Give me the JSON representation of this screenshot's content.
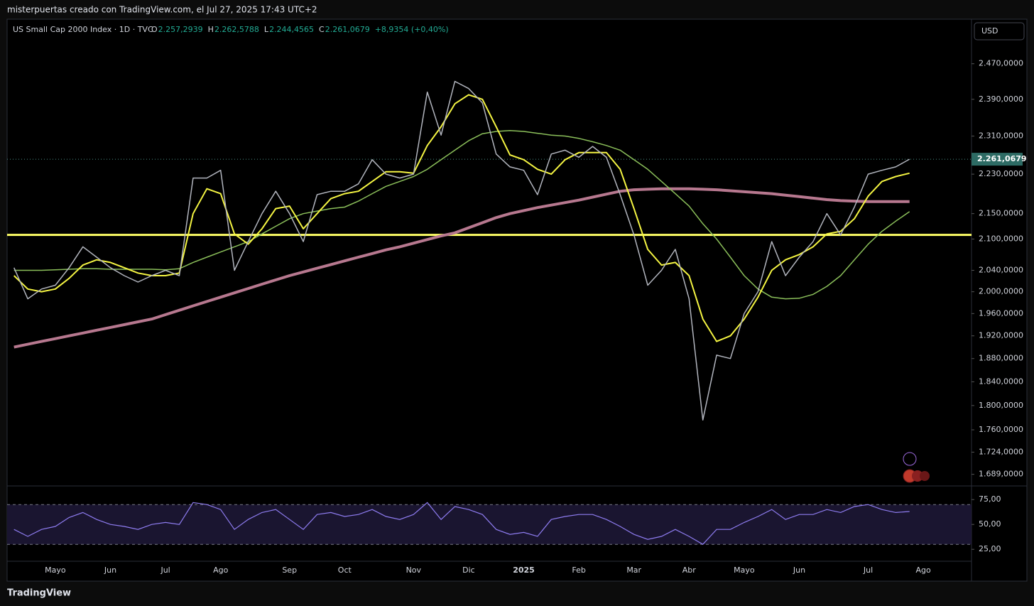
{
  "header": {
    "caption": "misterpuertas creado con TradingView.com, el Jul 27, 2025 17:43 UTC+2"
  },
  "legend": {
    "symbol": "US Small Cap 2000 Index · 1D · TVC",
    "items": [
      {
        "key": "O",
        "value": "2.257,2939"
      },
      {
        "key": "H",
        "value": "2.262,5788"
      },
      {
        "key": "L",
        "value": "2.244,4565"
      },
      {
        "key": "C",
        "value": "2.261,0679"
      }
    ],
    "change": "+8,9354 (+0,40%)"
  },
  "currency_button": "USD",
  "footer": {
    "brand": "TradingView"
  },
  "chart_data": {
    "type": "line",
    "log_scale": true,
    "ylim": [
      1672,
      2574
    ],
    "yticks": [
      {
        "value": 2470,
        "label": "2.470,0000"
      },
      {
        "value": 2390,
        "label": "2.390,0000"
      },
      {
        "value": 2310,
        "label": "2.310,0000"
      },
      {
        "value": 2230,
        "label": "2.230,0000"
      },
      {
        "value": 2150,
        "label": "2.150,0000"
      },
      {
        "value": 2100,
        "label": "2.100,0000"
      },
      {
        "value": 2040,
        "label": "2.040,0000"
      },
      {
        "value": 2000,
        "label": "2.000,0000"
      },
      {
        "value": 1960,
        "label": "1.960,0000"
      },
      {
        "value": 1920,
        "label": "1.920,0000"
      },
      {
        "value": 1880,
        "label": "1.880,0000"
      },
      {
        "value": 1840,
        "label": "1.840,0000"
      },
      {
        "value": 1800,
        "label": "1.800,0000"
      },
      {
        "value": 1760,
        "label": "1.760,0000"
      },
      {
        "value": 1724,
        "label": "1.724,0000"
      },
      {
        "value": 1689,
        "label": "1.689,0000"
      }
    ],
    "last_price": {
      "value": 2261.0679,
      "label": "2.261,0679"
    },
    "hline": {
      "value": 2108,
      "color": "#ffff66"
    },
    "categories": [
      null,
      null,
      null,
      "Mayo",
      null,
      null,
      null,
      "Jun",
      null,
      null,
      null,
      "Jul",
      null,
      null,
      null,
      "Ago",
      null,
      null,
      null,
      null,
      "Sep",
      null,
      null,
      null,
      "Oct",
      null,
      null,
      null,
      null,
      "Nov",
      null,
      null,
      null,
      "Dic",
      null,
      null,
      null,
      "2025",
      null,
      null,
      null,
      "Feb",
      null,
      null,
      null,
      "Mar",
      null,
      null,
      null,
      "Abr",
      null,
      null,
      null,
      "Mayo",
      null,
      null,
      null,
      "Jun",
      null,
      null,
      null,
      null,
      "Jul",
      null,
      null,
      null,
      "Ago",
      null,
      null,
      null
    ],
    "series": [
      {
        "color": "#b2b5be",
        "width": 1.5,
        "values": [
          2045,
          1987,
          2005,
          2012,
          2045,
          2085,
          2065,
          2045,
          2030,
          2018,
          2030,
          2040,
          2030,
          2222,
          2222,
          2238,
          2040,
          2095,
          2150,
          2195,
          2150,
          2095,
          2188,
          2195,
          2195,
          2210,
          2260,
          2230,
          2222,
          2230,
          2406,
          2312,
          2430,
          2414,
          2382,
          2272,
          2245,
          2238,
          2188,
          2272,
          2280,
          2265,
          2288,
          2265,
          2188,
          2108,
          2012,
          2040,
          2080,
          1987,
          1776,
          1886,
          1880,
          1960,
          2000,
          2095,
          2030,
          2065,
          2095,
          2150,
          2108,
          2163,
          2230,
          2238,
          2245,
          2261.0679,
          null,
          null,
          null,
          null
        ]
      },
      {
        "color": "#f5f542",
        "width": 2,
        "values": [
          2030,
          2005,
          2000,
          2005,
          2025,
          2050,
          2060,
          2055,
          2045,
          2035,
          2030,
          2030,
          2035,
          2150,
          2200,
          2190,
          2110,
          2090,
          2120,
          2160,
          2165,
          2120,
          2150,
          2180,
          2190,
          2195,
          2215,
          2235,
          2235,
          2232,
          2290,
          2330,
          2380,
          2400,
          2390,
          2330,
          2270,
          2260,
          2240,
          2230,
          2260,
          2275,
          2275,
          2275,
          2240,
          2160,
          2080,
          2050,
          2055,
          2030,
          1950,
          1910,
          1920,
          1950,
          1990,
          2040,
          2060,
          2070,
          2085,
          2110,
          2115,
          2140,
          2185,
          2215,
          2225,
          2232,
          null,
          null,
          null,
          null
        ]
      },
      {
        "color": "#8bbf5a",
        "width": 1.5,
        "values": [
          2040,
          2040,
          2040,
          2041,
          2042,
          2043,
          2043,
          2042,
          2042,
          2042,
          2042,
          2041,
          2043,
          2055,
          2065,
          2075,
          2085,
          2095,
          2110,
          2125,
          2140,
          2150,
          2155,
          2160,
          2163,
          2175,
          2190,
          2205,
          2215,
          2225,
          2240,
          2260,
          2280,
          2300,
          2315,
          2320,
          2322,
          2320,
          2316,
          2312,
          2310,
          2305,
          2298,
          2290,
          2280,
          2260,
          2240,
          2215,
          2190,
          2165,
          2130,
          2100,
          2065,
          2030,
          2005,
          1990,
          1987,
          1988,
          1995,
          2010,
          2030,
          2060,
          2090,
          2115,
          2135,
          2154,
          null,
          null,
          null,
          null
        ]
      },
      {
        "color": "#b7788f",
        "width": 4,
        "values": [
          1900,
          1905,
          1910,
          1915,
          1920,
          1925,
          1930,
          1935,
          1940,
          1945,
          1950,
          1958,
          1966,
          1974,
          1982,
          1990,
          1998,
          2006,
          2014,
          2022,
          2030,
          2037,
          2044,
          2051,
          2058,
          2065,
          2072,
          2079,
          2085,
          2092,
          2099,
          2106,
          2112,
          2122,
          2132,
          2142,
          2150,
          2156,
          2162,
          2167,
          2172,
          2177,
          2183,
          2189,
          2195,
          2198,
          2199,
          2200,
          2200,
          2200,
          2199,
          2198,
          2196,
          2194,
          2192,
          2190,
          2187,
          2184,
          2181,
          2178,
          2176,
          2175,
          2174,
          2174,
          2174,
          2174,
          null,
          null,
          null,
          null
        ]
      }
    ],
    "rsi": {
      "color": "#8e7cf0",
      "ylim": [
        13,
        88
      ],
      "yticks": [
        {
          "value": 75,
          "label": "75,00"
        },
        {
          "value": 50,
          "label": "50,00"
        },
        {
          "value": 25,
          "label": "25,00"
        }
      ],
      "bands": [
        70,
        30
      ],
      "values": [
        45,
        38,
        45,
        48,
        57,
        62,
        55,
        50,
        48,
        45,
        50,
        52,
        50,
        72,
        70,
        65,
        45,
        55,
        62,
        65,
        55,
        45,
        60,
        62,
        58,
        60,
        65,
        58,
        55,
        60,
        72,
        55,
        68,
        65,
        60,
        45,
        40,
        42,
        38,
        55,
        58,
        60,
        60,
        55,
        48,
        40,
        35,
        38,
        45,
        38,
        30,
        45,
        45,
        52,
        58,
        65,
        55,
        60,
        60,
        65,
        62,
        68,
        70,
        65,
        62,
        63,
        null,
        null,
        null,
        null
      ]
    }
  }
}
